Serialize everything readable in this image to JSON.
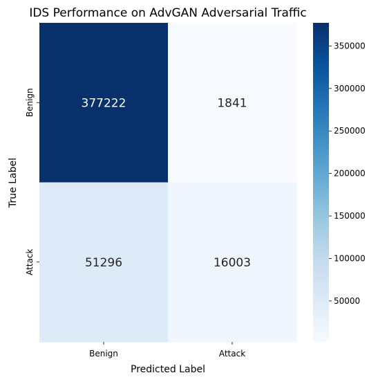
{
  "chart_data": {
    "type": "heatmap",
    "title": "IDS Performance on AdvGAN Adversarial Traffic",
    "xlabel": "Predicted Label",
    "ylabel": "True Label",
    "x_categories": [
      "Benign",
      "Attack"
    ],
    "y_categories": [
      "Benign",
      "Attack"
    ],
    "values": [
      [
        377222,
        1841
      ],
      [
        51296,
        16003
      ]
    ],
    "colormap": "Blues",
    "colorbar": {
      "min": 1841,
      "max": 377222,
      "ticks": [
        50000,
        100000,
        150000,
        200000,
        250000,
        300000,
        350000
      ]
    },
    "colors": {
      "cmap_low": "#f7fbff",
      "cmap_high": "#08306b",
      "annotation_dark_bg": "#ffffff",
      "annotation_light_bg": "#262626"
    }
  }
}
